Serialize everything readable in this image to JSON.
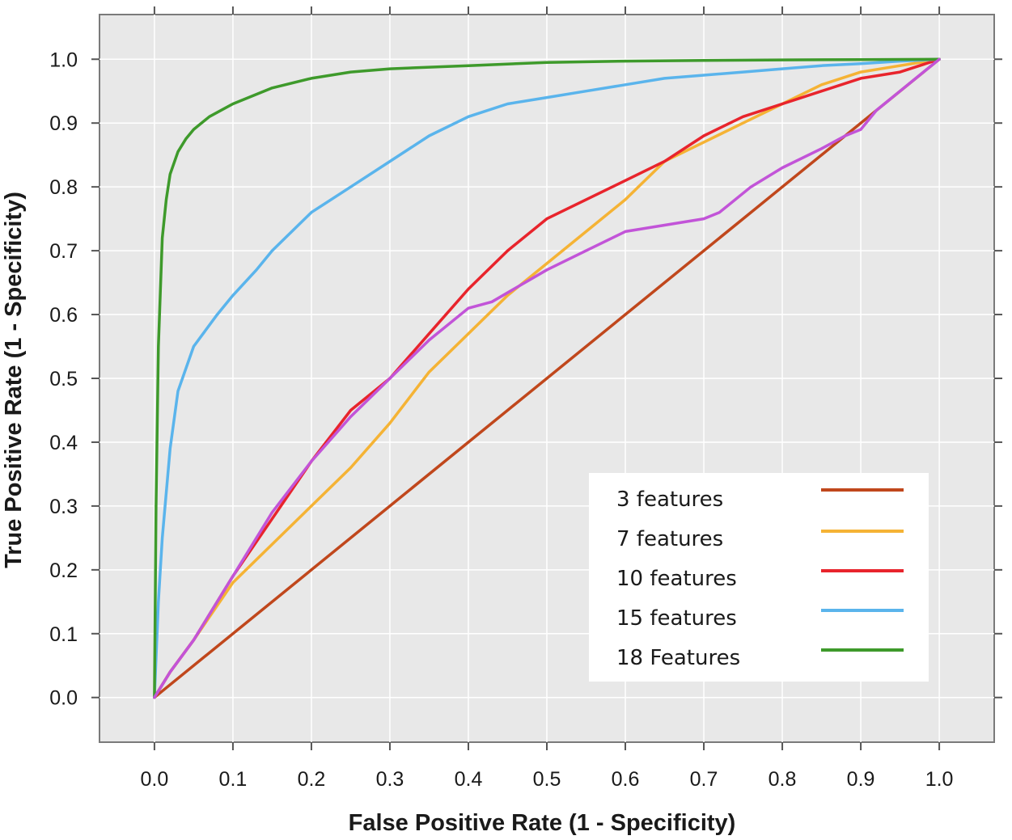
{
  "chart_data": {
    "type": "line",
    "title": "",
    "xlabel": "False Positive Rate (1 - Specificity)",
    "ylabel": "True Positive Rate (1 - Specificity)",
    "xlim": [
      -0.07,
      1.07
    ],
    "ylim": [
      -0.07,
      1.07
    ],
    "x_ticks": [
      "0.0",
      "0.1",
      "0.2",
      "0.3",
      "0.4",
      "0.5",
      "0.6",
      "0.7",
      "0.8",
      "0.9",
      "1.0"
    ],
    "y_ticks": [
      "0.0",
      "0.1",
      "0.2",
      "0.3",
      "0.4",
      "0.5",
      "0.6",
      "0.7",
      "0.8",
      "0.9",
      "1.0"
    ],
    "grid": true,
    "background": "#e8e8e8",
    "grid_color": "#ffffff",
    "diagonal_reference": true,
    "legend_position": "bottom-right",
    "series": [
      {
        "name": "3 features",
        "color": "#c0471c",
        "x": [
          0.0,
          1.0
        ],
        "y": [
          0.0,
          1.0
        ]
      },
      {
        "name": "7 features",
        "color": "#f5b335",
        "x": [
          0.0,
          0.02,
          0.05,
          0.1,
          0.15,
          0.2,
          0.25,
          0.3,
          0.35,
          0.4,
          0.45,
          0.5,
          0.55,
          0.6,
          0.65,
          0.7,
          0.75,
          0.8,
          0.85,
          0.9,
          0.95,
          1.0
        ],
        "y": [
          0.0,
          0.04,
          0.09,
          0.18,
          0.24,
          0.3,
          0.36,
          0.43,
          0.51,
          0.57,
          0.63,
          0.68,
          0.73,
          0.78,
          0.84,
          0.87,
          0.9,
          0.93,
          0.96,
          0.98,
          0.99,
          1.0
        ]
      },
      {
        "name": "10 features",
        "color": "#e8242c",
        "x": [
          0.0,
          0.02,
          0.05,
          0.1,
          0.15,
          0.2,
          0.25,
          0.3,
          0.35,
          0.4,
          0.45,
          0.5,
          0.55,
          0.6,
          0.65,
          0.7,
          0.75,
          0.8,
          0.85,
          0.9,
          0.95,
          1.0
        ],
        "y": [
          0.0,
          0.04,
          0.09,
          0.19,
          0.28,
          0.37,
          0.45,
          0.5,
          0.57,
          0.64,
          0.7,
          0.75,
          0.78,
          0.81,
          0.84,
          0.88,
          0.91,
          0.93,
          0.95,
          0.97,
          0.98,
          1.0
        ]
      },
      {
        "name": "15 features",
        "color": "#5ab4ec",
        "x": [
          0.0,
          0.005,
          0.01,
          0.02,
          0.03,
          0.05,
          0.08,
          0.1,
          0.13,
          0.15,
          0.2,
          0.25,
          0.3,
          0.35,
          0.4,
          0.45,
          0.5,
          0.55,
          0.6,
          0.65,
          0.7,
          0.75,
          0.8,
          0.85,
          0.9,
          0.95,
          1.0
        ],
        "y": [
          0.0,
          0.15,
          0.25,
          0.39,
          0.48,
          0.55,
          0.6,
          0.63,
          0.67,
          0.7,
          0.76,
          0.8,
          0.84,
          0.88,
          0.91,
          0.93,
          0.94,
          0.95,
          0.96,
          0.97,
          0.975,
          0.98,
          0.985,
          0.99,
          0.993,
          0.997,
          1.0
        ]
      },
      {
        "name": "18 Features",
        "color": "#3e9a2b",
        "x": [
          0.0,
          0.002,
          0.005,
          0.01,
          0.015,
          0.02,
          0.03,
          0.04,
          0.05,
          0.07,
          0.1,
          0.15,
          0.2,
          0.25,
          0.3,
          0.4,
          0.5,
          0.6,
          0.7,
          0.8,
          0.9,
          1.0
        ],
        "y": [
          0.0,
          0.3,
          0.55,
          0.72,
          0.78,
          0.82,
          0.855,
          0.875,
          0.89,
          0.91,
          0.93,
          0.955,
          0.97,
          0.98,
          0.985,
          0.99,
          0.995,
          0.997,
          0.998,
          0.999,
          0.9995,
          1.0
        ]
      },
      {
        "name": "",
        "color": "#c254d8",
        "x": [
          0.0,
          0.02,
          0.05,
          0.1,
          0.15,
          0.2,
          0.25,
          0.3,
          0.35,
          0.4,
          0.43,
          0.5,
          0.55,
          0.6,
          0.65,
          0.7,
          0.72,
          0.76,
          0.8,
          0.85,
          0.88,
          0.9,
          0.92,
          0.95,
          0.97,
          1.0
        ],
        "y": [
          0.0,
          0.04,
          0.09,
          0.19,
          0.29,
          0.37,
          0.44,
          0.5,
          0.56,
          0.61,
          0.62,
          0.67,
          0.7,
          0.73,
          0.74,
          0.75,
          0.76,
          0.8,
          0.83,
          0.86,
          0.88,
          0.89,
          0.92,
          0.95,
          0.97,
          1.0
        ]
      }
    ]
  }
}
